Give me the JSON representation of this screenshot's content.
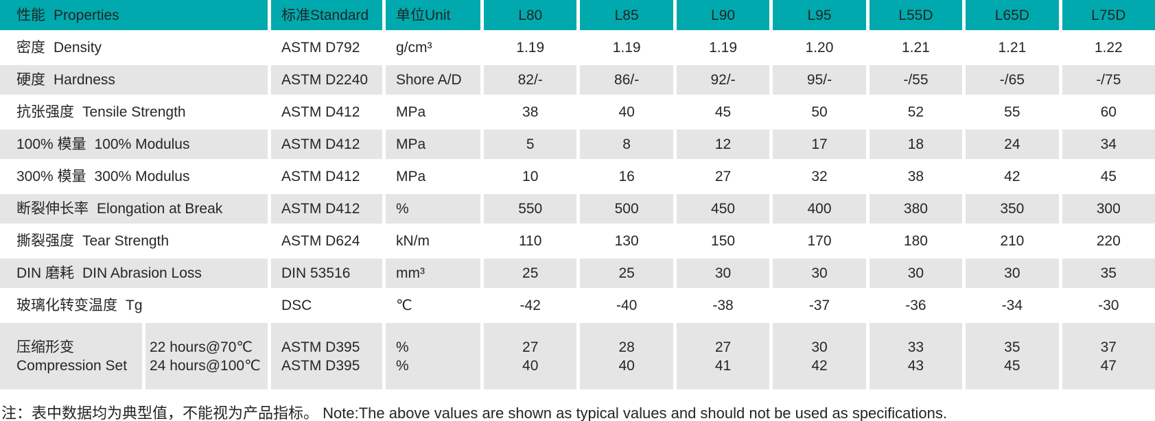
{
  "header": {
    "properties": {
      "zh": "性能",
      "en": "Properties"
    },
    "standard": {
      "zh": "标准",
      "en": "Standard"
    },
    "unit": {
      "zh": "单位",
      "en": "Unit"
    },
    "grades": [
      "L80",
      "L85",
      "L90",
      "L95",
      "L55D",
      "L65D",
      "L75D"
    ]
  },
  "rows": [
    {
      "property": {
        "zh": "密度",
        "en": "Density"
      },
      "standard": "ASTM D792",
      "unit": "g/cm³",
      "values": [
        "1.19",
        "1.19",
        "1.19",
        "1.20",
        "1.21",
        "1.21",
        "1.22"
      ]
    },
    {
      "property": {
        "zh": "硬度",
        "en": "Hardness"
      },
      "standard": "ASTM D2240",
      "unit": "Shore A/D",
      "values": [
        "82/-",
        "86/-",
        "92/-",
        "95/-",
        "-/55",
        "-/65",
        "-/75"
      ]
    },
    {
      "property": {
        "zh": "抗张强度",
        "en": "Tensile Strength"
      },
      "standard": "ASTM D412",
      "unit": "MPa",
      "values": [
        "38",
        "40",
        "45",
        "50",
        "52",
        "55",
        "60"
      ]
    },
    {
      "property": {
        "zh": "100% 模量",
        "en": "100% Modulus"
      },
      "standard": "ASTM D412",
      "unit": "MPa",
      "values": [
        "5",
        "8",
        "12",
        "17",
        "18",
        "24",
        "34"
      ]
    },
    {
      "property": {
        "zh": "300% 模量",
        "en": "300% Modulus"
      },
      "standard": "ASTM D412",
      "unit": "MPa",
      "values": [
        "10",
        "16",
        "27",
        "32",
        "38",
        "42",
        "45"
      ]
    },
    {
      "property": {
        "zh": "断裂伸长率",
        "en": "Elongation at Break"
      },
      "standard": "ASTM D412",
      "unit": "%",
      "values": [
        "550",
        "500",
        "450",
        "400",
        "380",
        "350",
        "300"
      ]
    },
    {
      "property": {
        "zh": "撕裂强度",
        "en": "Tear Strength"
      },
      "standard": "ASTM D624",
      "unit": "kN/m",
      "values": [
        "110",
        "130",
        "150",
        "170",
        "180",
        "210",
        "220"
      ]
    },
    {
      "property": {
        "zh": "DIN 磨耗",
        "en": "DIN Abrasion Loss"
      },
      "standard": "DIN 53516",
      "unit": "mm³",
      "values": [
        "25",
        "25",
        "30",
        "30",
        "30",
        "30",
        "35"
      ]
    },
    {
      "property": {
        "zh": "玻璃化转变温度",
        "en": "Tg"
      },
      "standard": "DSC",
      "unit": "℃",
      "values": [
        "-42",
        "-40",
        "-38",
        "-37",
        "-36",
        "-34",
        "-30"
      ]
    }
  ],
  "compression_row": {
    "property_lines": [
      "压缩形变",
      "Compression Set"
    ],
    "condition_lines": [
      "22 hours@70℃",
      "24 hours@100℃"
    ],
    "standard_lines": [
      "ASTM D395",
      "ASTM D395"
    ],
    "unit_lines": [
      "%",
      "%"
    ],
    "values": [
      [
        "27",
        "40"
      ],
      [
        "28",
        "40"
      ],
      [
        "27",
        "41"
      ],
      [
        "30",
        "42"
      ],
      [
        "33",
        "43"
      ],
      [
        "35",
        "45"
      ],
      [
        "37",
        "47"
      ]
    ]
  },
  "note": "注：表中数据均为典型值，不能视为产品指标。 Note:The above values are shown as typical values and should not be used as specifications.",
  "colors": {
    "header_bg": "#00a9ad",
    "row_alt_bg": "#e5e5e6",
    "row_bg": "#ffffff",
    "text": "#262626"
  }
}
